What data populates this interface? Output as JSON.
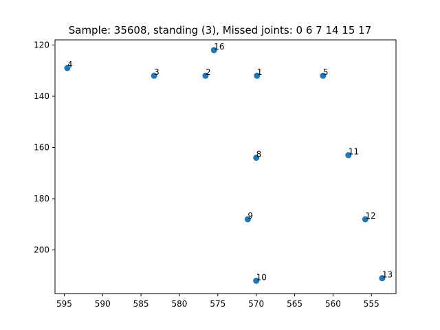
{
  "chart_data": {
    "type": "scatter",
    "title": "Sample: 35608, standing (3), Missed joints: 0  6  7  14  15  17",
    "xlabel": "",
    "ylabel": "",
    "x_inverted": true,
    "y_inverted": true,
    "xlim": [
      596.2,
      551.8
    ],
    "ylim": [
      217.0,
      118.0
    ],
    "xticks": [
      {
        "value": 595,
        "label": "595"
      },
      {
        "value": 590,
        "label": "590"
      },
      {
        "value": 585,
        "label": "585"
      },
      {
        "value": 580,
        "label": "580"
      },
      {
        "value": 575,
        "label": "575"
      },
      {
        "value": 570,
        "label": "570"
      },
      {
        "value": 565,
        "label": "565"
      },
      {
        "value": 560,
        "label": "560"
      },
      {
        "value": 555,
        "label": "555"
      }
    ],
    "yticks": [
      {
        "value": 120,
        "label": "120"
      },
      {
        "value": 140,
        "label": "140"
      },
      {
        "value": 160,
        "label": "160"
      },
      {
        "value": 180,
        "label": "180"
      },
      {
        "value": 200,
        "label": "200"
      }
    ],
    "grid": false,
    "marker_color": "#1f77b4",
    "points": [
      {
        "label": "1",
        "x": 569.9,
        "y": 132.0
      },
      {
        "label": "2",
        "x": 576.6,
        "y": 132.0
      },
      {
        "label": "3",
        "x": 583.3,
        "y": 132.0
      },
      {
        "label": "4",
        "x": 594.6,
        "y": 129.0
      },
      {
        "label": "5",
        "x": 561.3,
        "y": 132.0
      },
      {
        "label": "8",
        "x": 570.0,
        "y": 164.0
      },
      {
        "label": "9",
        "x": 571.1,
        "y": 188.0
      },
      {
        "label": "10",
        "x": 570.0,
        "y": 212.0
      },
      {
        "label": "11",
        "x": 558.0,
        "y": 163.0
      },
      {
        "label": "12",
        "x": 555.8,
        "y": 188.0
      },
      {
        "label": "13",
        "x": 553.6,
        "y": 211.0
      },
      {
        "label": "16",
        "x": 575.5,
        "y": 122.0
      }
    ]
  }
}
